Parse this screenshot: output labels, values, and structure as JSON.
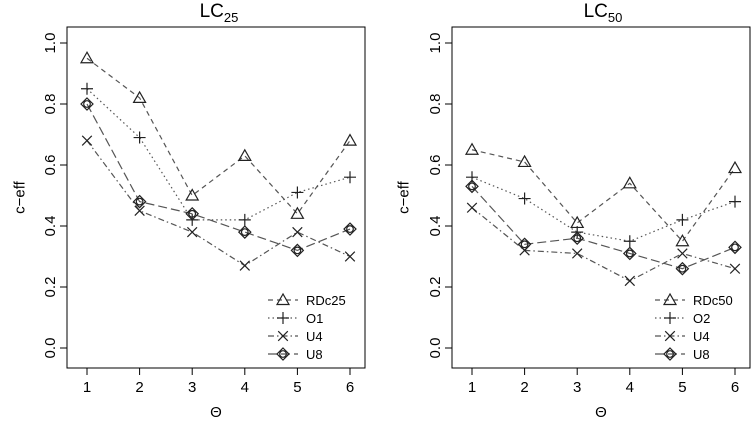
{
  "chart_data": [
    {
      "type": "line",
      "title_main": "LC",
      "title_sub": "25",
      "xlabel": "Θ",
      "ylabel": "c−eff",
      "x": [
        1,
        2,
        3,
        4,
        5,
        6
      ],
      "ylim": [
        0.0,
        1.0
      ],
      "yticks": [
        "0.0",
        "0.2",
        "0.4",
        "0.6",
        "0.8",
        "1.0"
      ],
      "xticks": [
        "1",
        "2",
        "3",
        "4",
        "5",
        "6"
      ],
      "legend_position": "bottom-right",
      "series": [
        {
          "name": "RDc25",
          "marker": "triangle",
          "dash": "5,4",
          "values": [
            0.95,
            0.82,
            0.5,
            0.63,
            0.44,
            0.68
          ]
        },
        {
          "name": "O1",
          "marker": "plus",
          "dash": "1.5,3",
          "values": [
            0.85,
            0.69,
            0.42,
            0.42,
            0.51,
            0.56
          ]
        },
        {
          "name": "U4",
          "marker": "cross",
          "dash": "6,3,1.5,3",
          "values": [
            0.68,
            0.45,
            0.38,
            0.27,
            0.38,
            0.3
          ]
        },
        {
          "name": "U8",
          "marker": "diamond",
          "dash": "9,4",
          "values": [
            0.8,
            0.48,
            0.44,
            0.38,
            0.32,
            0.39
          ]
        }
      ]
    },
    {
      "type": "line",
      "title_main": "LC",
      "title_sub": "50",
      "xlabel": "Θ",
      "ylabel": "c−eff",
      "x": [
        1,
        2,
        3,
        4,
        5,
        6
      ],
      "ylim": [
        0.0,
        1.0
      ],
      "yticks": [
        "0.0",
        "0.2",
        "0.4",
        "0.6",
        "0.8",
        "1.0"
      ],
      "xticks": [
        "1",
        "2",
        "3",
        "4",
        "5",
        "6"
      ],
      "legend_position": "bottom-right",
      "series": [
        {
          "name": "RDc50",
          "marker": "triangle",
          "dash": "5,4",
          "values": [
            0.65,
            0.61,
            0.41,
            0.54,
            0.35,
            0.59
          ]
        },
        {
          "name": "O2",
          "marker": "plus",
          "dash": "1.5,3",
          "values": [
            0.56,
            0.49,
            0.38,
            0.35,
            0.42,
            0.48
          ]
        },
        {
          "name": "U4",
          "marker": "cross",
          "dash": "6,3,1.5,3",
          "values": [
            0.46,
            0.32,
            0.31,
            0.22,
            0.31,
            0.26
          ]
        },
        {
          "name": "U8",
          "marker": "diamond",
          "dash": "9,4",
          "values": [
            0.53,
            0.34,
            0.36,
            0.31,
            0.26,
            0.33
          ]
        }
      ]
    }
  ],
  "colors": {
    "line": "#555555",
    "marker": "#222222",
    "axis": "#000000"
  }
}
